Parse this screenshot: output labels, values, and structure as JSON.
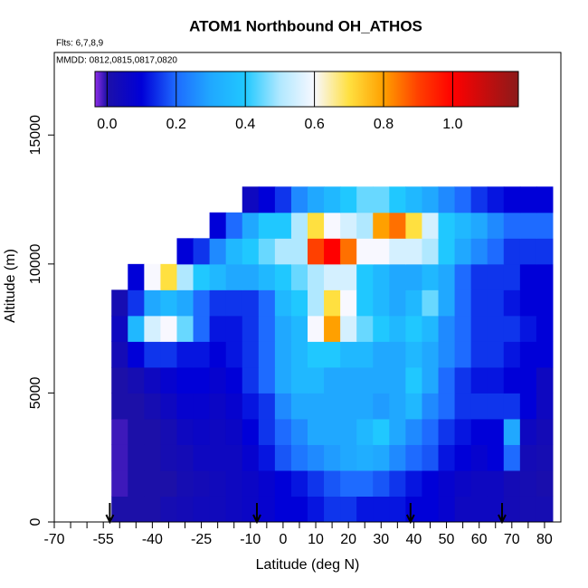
{
  "chart_data": {
    "type": "heatmap",
    "title": "ATOM1 Northbound OH_ATHOS",
    "subtitle": "Flts: 6,7,8,9",
    "annotation": "MMDD: 0812,0815,0817,0820",
    "x_label": "Latitude (deg N)",
    "y_label": "Altitude (m)",
    "xlim": [
      -70,
      85
    ],
    "ylim": [
      0,
      18200
    ],
    "xticks": [
      -70,
      -55,
      -40,
      -25,
      -10,
      0,
      10,
      20,
      30,
      40,
      50,
      60,
      70,
      80
    ],
    "xminorticks": [
      -65,
      -60,
      -50,
      -45,
      -35,
      -30,
      -20,
      -15,
      -5,
      5,
      15,
      25,
      35,
      45,
      55,
      65,
      75
    ],
    "yticks": [
      0,
      5000,
      10000,
      15000
    ],
    "x": [
      -50,
      -45,
      -40,
      -35,
      -30,
      -25,
      -20,
      -15,
      -10,
      -5,
      0,
      5,
      10,
      15,
      20,
      25,
      30,
      35,
      40,
      45,
      50,
      55,
      60,
      65,
      70,
      75,
      80
    ],
    "y": [
      500,
      1500,
      2500,
      3500,
      4500,
      5500,
      6500,
      7500,
      8500,
      9500,
      10500,
      11500,
      12500
    ],
    "z": [
      [
        0.0,
        0.0,
        0.0,
        0.02,
        0.03,
        0.04,
        0.04,
        0.05,
        0.06,
        0.08,
        0.1,
        0.1,
        0.12,
        0.15,
        0.15,
        0.12,
        0.12,
        0.12,
        0.1,
        0.1,
        0.08,
        0.05,
        0.05,
        0.05,
        0.03,
        0.02,
        0.02
      ],
      [
        -0.01,
        0.0,
        0.0,
        0.0,
        0.02,
        0.03,
        0.04,
        0.05,
        0.06,
        0.08,
        0.1,
        0.12,
        0.15,
        0.18,
        0.2,
        0.2,
        0.18,
        0.15,
        0.12,
        0.1,
        0.08,
        0.06,
        0.05,
        0.05,
        0.03,
        0.02,
        0.01
      ],
      [
        -0.01,
        0.0,
        0.0,
        0.02,
        0.03,
        0.05,
        0.05,
        0.05,
        0.08,
        0.12,
        0.18,
        0.22,
        0.25,
        0.28,
        0.3,
        0.32,
        0.3,
        0.25,
        0.2,
        0.18,
        0.12,
        0.1,
        0.08,
        0.1,
        0.2,
        0.03,
        0.02
      ],
      [
        -0.01,
        0.0,
        0.0,
        0.02,
        0.05,
        0.06,
        0.05,
        0.06,
        0.1,
        0.15,
        0.2,
        0.25,
        0.3,
        0.3,
        0.3,
        0.35,
        0.4,
        0.3,
        0.25,
        0.2,
        0.15,
        0.12,
        0.1,
        0.1,
        0.3,
        0.05,
        0.03
      ],
      [
        0.0,
        0.0,
        0.02,
        0.05,
        0.08,
        0.08,
        0.06,
        0.08,
        0.12,
        0.15,
        0.25,
        0.3,
        0.3,
        0.3,
        0.3,
        0.3,
        0.28,
        0.3,
        0.35,
        0.25,
        0.2,
        0.15,
        0.15,
        0.15,
        0.15,
        0.1,
        0.05
      ],
      [
        0.0,
        0.02,
        0.05,
        0.08,
        0.1,
        0.1,
        0.08,
        0.1,
        0.15,
        0.2,
        0.3,
        0.35,
        0.35,
        0.3,
        0.3,
        0.3,
        0.3,
        0.3,
        0.4,
        0.3,
        0.2,
        0.15,
        0.12,
        0.12,
        0.1,
        0.1,
        0.05
      ],
      [
        0.03,
        0.1,
        0.15,
        0.15,
        0.12,
        0.12,
        0.1,
        0.12,
        0.15,
        0.2,
        0.3,
        0.35,
        0.4,
        0.4,
        0.35,
        0.35,
        0.3,
        0.3,
        0.35,
        0.3,
        0.25,
        0.2,
        0.15,
        0.15,
        0.12,
        0.1,
        0.1
      ],
      [
        0.05,
        0.35,
        0.55,
        0.6,
        0.45,
        0.2,
        0.12,
        0.12,
        0.15,
        0.2,
        0.3,
        0.35,
        0.6,
        0.8,
        0.55,
        0.45,
        0.4,
        0.35,
        0.4,
        0.35,
        0.25,
        0.2,
        0.15,
        0.15,
        0.15,
        0.12,
        0.1
      ],
      [
        0.02,
        0.15,
        0.3,
        0.35,
        0.3,
        0.2,
        0.15,
        0.15,
        0.15,
        0.2,
        0.35,
        0.4,
        0.5,
        0.7,
        0.6,
        0.4,
        0.35,
        0.3,
        0.35,
        0.45,
        0.3,
        0.2,
        0.15,
        0.15,
        0.12,
        0.1,
        0.1
      ],
      [
        null,
        0.1,
        0.6,
        0.7,
        0.5,
        0.4,
        0.35,
        0.3,
        0.3,
        0.35,
        0.4,
        0.45,
        0.5,
        0.55,
        0.55,
        0.4,
        0.35,
        0.3,
        0.3,
        0.35,
        0.3,
        0.2,
        0.15,
        0.15,
        0.15,
        0.1,
        0.1
      ],
      [
        null,
        null,
        null,
        null,
        0.1,
        0.15,
        0.25,
        0.35,
        0.4,
        0.45,
        0.5,
        0.5,
        0.9,
        1.0,
        0.85,
        0.6,
        0.6,
        0.55,
        0.55,
        0.5,
        0.4,
        0.3,
        0.25,
        0.2,
        0.15,
        0.15,
        0.15
      ],
      [
        null,
        null,
        null,
        null,
        null,
        null,
        0.1,
        0.2,
        0.3,
        0.4,
        0.4,
        0.5,
        0.7,
        0.6,
        0.55,
        0.5,
        0.8,
        0.85,
        0.7,
        0.55,
        0.4,
        0.35,
        0.3,
        0.25,
        0.2,
        0.2,
        0.2
      ],
      [
        null,
        null,
        null,
        null,
        null,
        null,
        null,
        null,
        0.05,
        0.1,
        0.15,
        0.25,
        0.3,
        0.35,
        0.4,
        0.45,
        0.45,
        0.4,
        0.35,
        0.3,
        0.25,
        0.2,
        0.15,
        0.12,
        0.1,
        0.1,
        0.1
      ]
    ],
    "clim": [
      -0.035,
      1.19
    ],
    "colorbar_ticks": [
      {
        "value": 0,
        "label": "0.0"
      },
      0.2,
      0.4,
      0.6,
      0.8,
      {
        "value": 1,
        "label": "1.0"
      }
    ],
    "colorscale": [
      {
        "value": -0.035,
        "color": "#8f2ee8"
      },
      {
        "value": 0,
        "color": "#1c10a8"
      },
      {
        "value": 0.1,
        "color": "#0000d8"
      },
      {
        "value": 0.2,
        "color": "#1e6bff"
      },
      {
        "value": 0.3,
        "color": "#20a8ff"
      },
      {
        "value": 0.4,
        "color": "#20c8ff"
      },
      {
        "value": 0.5,
        "color": "#b0e8ff"
      },
      {
        "value": 0.6,
        "color": "#f8f8ff"
      },
      {
        "value": 0.7,
        "color": "#ffe040"
      },
      {
        "value": 0.8,
        "color": "#ffa000"
      },
      {
        "value": 0.9,
        "color": "#ff4000"
      },
      {
        "value": 1,
        "color": "#ff0000"
      },
      {
        "value": 1.19,
        "color": "#8b1a1a"
      }
    ],
    "arrows": [
      -53,
      -8,
      39,
      67
    ]
  }
}
